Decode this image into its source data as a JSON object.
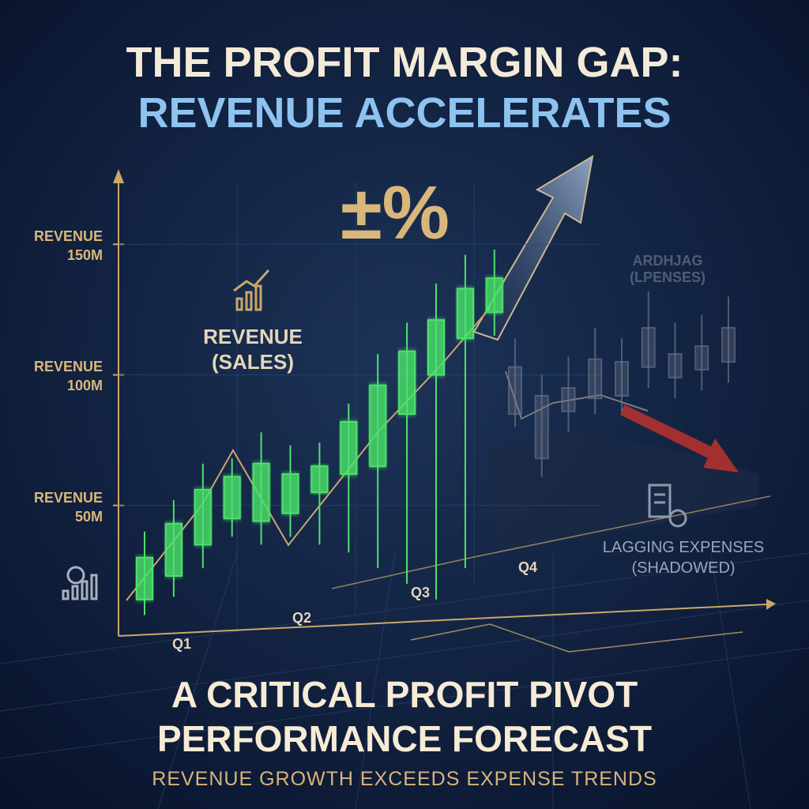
{
  "chart_data": {
    "type": "candlestick",
    "title": "THE PROFIT MARGIN GAP:",
    "subtitle": "REVENUE ACCELERATES",
    "annotation": "±%",
    "faded_label": "ARDHJAG (LPENSES)",
    "ylim": [
      0,
      177
    ],
    "yticks": [
      {
        "value": 50,
        "label": "REVENUE 50M"
      },
      {
        "value": 100,
        "label": "REVENUE 100M"
      },
      {
        "value": 150,
        "label": "REVENUE 150M"
      }
    ],
    "grid": true,
    "quarters": [
      "Q1",
      "Q2",
      "Q3",
      "Q4"
    ],
    "series": [
      {
        "name": "REVENUE (SALES)",
        "color": "#4be36a",
        "open": [
          14,
          23,
          35,
          45,
          44,
          47,
          55,
          62,
          65,
          85,
          100,
          114,
          124
        ],
        "close": [
          30,
          43,
          56,
          61,
          66,
          62,
          65,
          82,
          96,
          109,
          121,
          133,
          137
        ],
        "high": [
          40,
          52,
          66,
          68,
          78,
          73,
          74,
          89,
          108,
          120,
          135,
          146,
          148
        ],
        "low": [
          8,
          15,
          26,
          38,
          35,
          38,
          35,
          32,
          26,
          20,
          14,
          26,
          115
        ]
      },
      {
        "name": "LAGGING EXPENSES (SHADOWED)",
        "color": "#6b7488",
        "open": [
          85,
          68,
          86,
          91,
          92,
          103,
          99,
          102,
          105
        ],
        "close": [
          103,
          92,
          95,
          106,
          105,
          118,
          108,
          111,
          118
        ],
        "high": [
          114,
          100,
          107,
          118,
          114,
          132,
          120,
          123,
          130
        ],
        "low": [
          80,
          61,
          78,
          85,
          86,
          95,
          91,
          94,
          97
        ]
      }
    ],
    "headline": [
      "A CRITICAL PROFIT PIVOT",
      "PERFORMANCE FORECAST"
    ],
    "tagline": "REVENUE GROWTH EXCEEDS EXPENSE TRENDS"
  }
}
